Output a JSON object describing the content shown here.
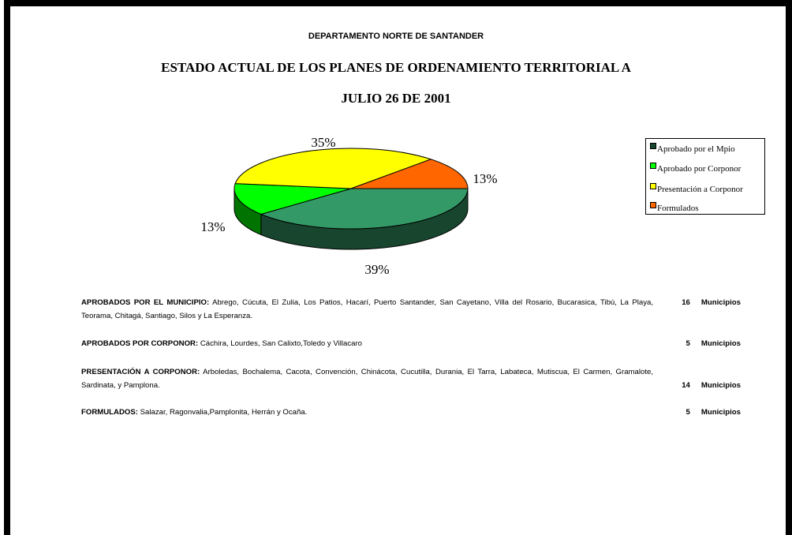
{
  "header": {
    "department": "DEPARTAMENTO NORTE DE SANTANDER",
    "title_line1": "ESTADO ACTUAL DE  LOS PLANES DE ORDENAMIENTO TERRITORIAL  A",
    "title_line2": "JULIO  26 DE 2001"
  },
  "chart_data": {
    "type": "pie",
    "categories": [
      "Aprobado por el Mpio",
      "Aprobado por Corponor",
      "Presentación a Corponor",
      "Formulados"
    ],
    "values": [
      39,
      13,
      35,
      13
    ],
    "value_labels": [
      "39%",
      "13%",
      "35%",
      "13%"
    ],
    "colors": [
      "#339966",
      "#00ff00",
      "#ffff00",
      "#ff6600"
    ],
    "legend": "right"
  },
  "sections": [
    {
      "heading": "APROBADOS POR EL MUNICIPIO:",
      "text": "Abrego, Cúcuta, El Zulia, Los Patios, Hacarí, Puerto Santander, San Cayetano, Villa del Rosario, Bucarasica, Tibú, La Playa, Teorama, Chitagá, Santiago, Silos y La Esperanza.",
      "count": "16",
      "unit": "Municipios"
    },
    {
      "heading": "APROBADOS POR CORPONOR:",
      "text": "Cáchira,  Lourdes, San Calixto,Toledo  y Villacaro",
      "count": "5",
      "unit": "Municipios"
    },
    {
      "heading": "PRESENTACIÓN A CORPONOR:",
      "text": "Arboledas, Bochalema,  Cacota, Convención,  Chinácota, Cucutilla, Durania, El Tarra, Labateca, Mutiscua, El Carmen, Gramalote, Sardinata, y  Pamplona.",
      "count": "14",
      "unit": "Municipios"
    },
    {
      "heading": "FORMULADOS:",
      "text": "Salazar, Ragonvalia,Pamplonita, Herrán y Ocaña.",
      "count": "5",
      "unit": "Municipios"
    }
  ]
}
